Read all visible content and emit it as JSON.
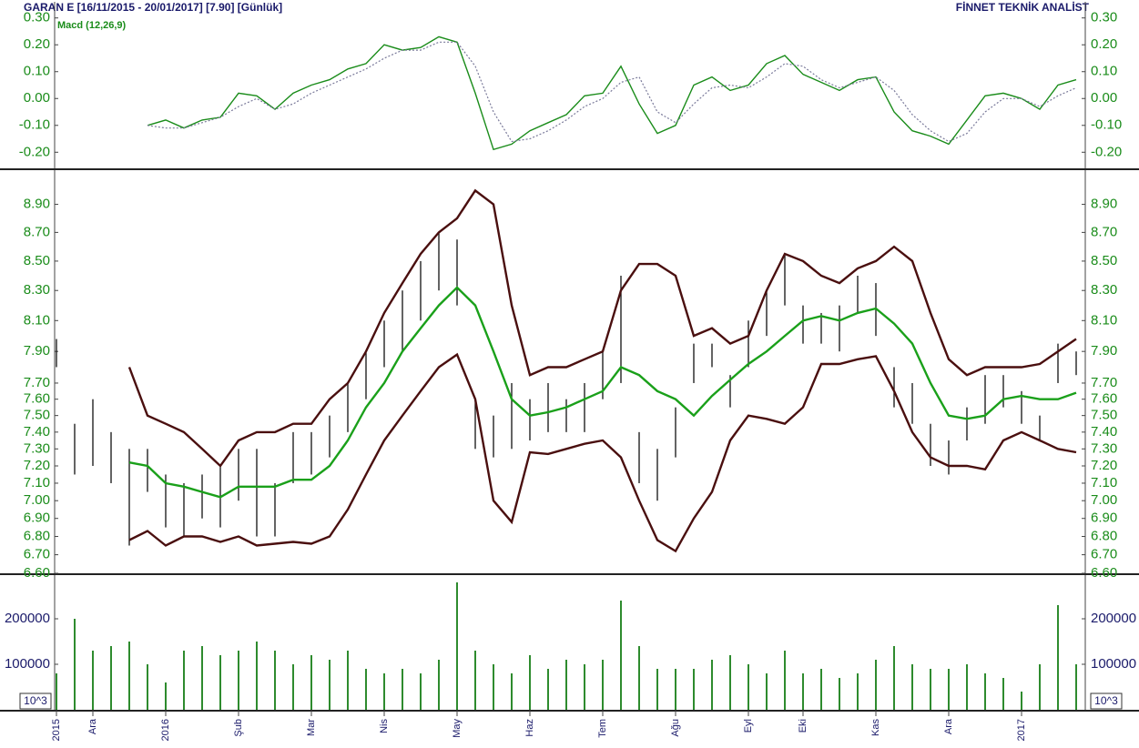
{
  "header": {
    "title": "GARAN E  [16/11/2015 - 20/01/2017]  [7.90]  [Günlük]",
    "source": "FİNNET TEKNİK ANALİST"
  },
  "chart_data": [
    {
      "type": "line",
      "title": "Macd (12,26,9)",
      "title_color": "#1a8c1a",
      "ylim": [
        -0.26,
        0.36
      ],
      "yticks": [
        {
          "value": 0.3,
          "label": "0.30"
        },
        {
          "value": 0.2,
          "label": "0.20"
        },
        {
          "value": 0.1,
          "label": "0.10"
        },
        {
          "value": 0,
          "label": "0.00"
        },
        {
          "value": -0.1,
          "label": "-0.10"
        },
        {
          "value": -0.2,
          "label": "-0.20"
        }
      ],
      "series": [
        {
          "color": "#1a8c1a",
          "style": "solid",
          "values": [
            null,
            null,
            null,
            null,
            null,
            -0.1,
            -0.08,
            -0.11,
            -0.08,
            -0.07,
            0.02,
            0.01,
            -0.04,
            0.02,
            0.05,
            0.07,
            0.11,
            0.13,
            0.2,
            0.18,
            0.19,
            0.23,
            0.21,
            0.02,
            -0.19,
            -0.17,
            -0.12,
            -0.09,
            -0.06,
            0.01,
            0.02,
            0.12,
            -0.02,
            -0.13,
            -0.1,
            0.05,
            0.08,
            0.03,
            0.05,
            0.13,
            0.16,
            0.09,
            0.06,
            0.03,
            0.07,
            0.08,
            -0.05,
            -0.12,
            -0.14,
            -0.17,
            -0.08,
            0.01,
            0.02,
            0,
            -0.04,
            0.05,
            0.07
          ]
        },
        {
          "color": "#7a7a9a",
          "style": "dotted",
          "values": [
            null,
            null,
            null,
            null,
            null,
            -0.1,
            -0.11,
            -0.11,
            -0.09,
            -0.07,
            -0.03,
            0,
            -0.04,
            -0.02,
            0.02,
            0.05,
            0.08,
            0.11,
            0.15,
            0.18,
            0.18,
            0.21,
            0.21,
            0.12,
            -0.05,
            -0.16,
            -0.15,
            -0.12,
            -0.08,
            -0.03,
            0,
            0.06,
            0.08,
            -0.05,
            -0.09,
            -0.02,
            0.04,
            0.05,
            0.04,
            0.08,
            0.13,
            0.12,
            0.07,
            0.04,
            0.06,
            0.08,
            0.03,
            -0.06,
            -0.12,
            -0.16,
            -0.13,
            -0.05,
            0,
            0,
            -0.03,
            0.01,
            0.04
          ]
        }
      ]
    },
    {
      "type": "ohlc",
      "log": true,
      "color": "#111111",
      "ylim": [
        6.6,
        9.15
      ],
      "yticks": [
        {
          "value": 8.9,
          "label": "8.90"
        },
        {
          "value": 8.7,
          "label": "8.70"
        },
        {
          "value": 8.5,
          "label": "8.50"
        },
        {
          "value": 8.3,
          "label": "8.30"
        },
        {
          "value": 8.1,
          "label": "8.10"
        },
        {
          "value": 7.9,
          "label": "7.90"
        },
        {
          "value": 7.7,
          "label": "7.70"
        },
        {
          "value": 7.6,
          "label": "7.60"
        },
        {
          "value": 7.5,
          "label": "7.50"
        },
        {
          "value": 7.4,
          "label": "7.40"
        },
        {
          "value": 7.3,
          "label": "7.30"
        },
        {
          "value": 7.2,
          "label": "7.20"
        },
        {
          "value": 7.1,
          "label": "7.10"
        },
        {
          "value": 7,
          "label": "7.00"
        },
        {
          "value": 6.9,
          "label": "6.90"
        },
        {
          "value": 6.8,
          "label": "6.80"
        },
        {
          "value": 6.7,
          "label": "6.70"
        },
        {
          "value": 6.6,
          "label": "6.60"
        }
      ],
      "high": [
        7.98,
        7.45,
        7.6,
        7.4,
        7.3,
        7.3,
        7.15,
        7.1,
        7.15,
        7.2,
        7.3,
        7.3,
        7.1,
        7.4,
        7.4,
        7.5,
        7.7,
        7.9,
        8.1,
        8.3,
        8.5,
        8.7,
        8.65,
        7.6,
        7.5,
        7.7,
        7.6,
        7.7,
        7.6,
        7.7,
        7.9,
        8.4,
        7.4,
        7.3,
        7.55,
        7.95,
        7.95,
        7.75,
        8.1,
        8.3,
        8.55,
        8.2,
        8.15,
        8.2,
        8.4,
        8.35,
        7.8,
        7.7,
        7.45,
        7.35,
        7.55,
        7.75,
        7.75,
        7.65,
        7.5,
        7.95,
        7.9
      ],
      "low": [
        7.8,
        7.15,
        7.2,
        7.1,
        6.75,
        7.05,
        6.85,
        6.8,
        6.9,
        6.85,
        7.0,
        6.8,
        6.8,
        7.1,
        7.15,
        7.25,
        7.4,
        7.6,
        7.8,
        7.9,
        8.1,
        8.3,
        8.2,
        7.3,
        7.25,
        7.3,
        7.35,
        7.4,
        7.4,
        7.4,
        7.6,
        7.7,
        7.1,
        7.0,
        7.25,
        7.7,
        7.8,
        7.55,
        7.8,
        8.0,
        8.2,
        7.95,
        7.95,
        7.9,
        8.15,
        8.0,
        7.55,
        7.45,
        7.2,
        7.15,
        7.35,
        7.45,
        7.55,
        7.45,
        7.35,
        7.7,
        7.75
      ],
      "series": [
        {
          "color": "#4a0f0f",
          "values": [
            null,
            null,
            null,
            null,
            7.8,
            7.5,
            7.45,
            7.4,
            7.3,
            7.2,
            7.35,
            7.4,
            7.4,
            7.45,
            7.45,
            7.6,
            7.7,
            7.9,
            8.15,
            8.35,
            8.55,
            8.7,
            8.8,
            9.0,
            8.9,
            8.2,
            7.75,
            7.8,
            7.8,
            7.85,
            7.9,
            8.3,
            8.48,
            8.48,
            8.4,
            8.0,
            8.05,
            7.95,
            8.0,
            8.3,
            8.55,
            8.5,
            8.4,
            8.35,
            8.45,
            8.5,
            8.6,
            8.5,
            8.15,
            7.85,
            7.75,
            7.8,
            7.8,
            7.8,
            7.82,
            7.9,
            7.98
          ]
        },
        {
          "color": "#1aa01a",
          "values": [
            null,
            null,
            null,
            null,
            7.22,
            7.2,
            7.1,
            7.08,
            7.05,
            7.02,
            7.08,
            7.08,
            7.08,
            7.12,
            7.12,
            7.2,
            7.35,
            7.55,
            7.7,
            7.9,
            8.05,
            8.2,
            8.32,
            8.2,
            7.9,
            7.6,
            7.5,
            7.52,
            7.55,
            7.6,
            7.65,
            7.8,
            7.75,
            7.65,
            7.6,
            7.5,
            7.62,
            7.72,
            7.82,
            7.9,
            8.0,
            8.1,
            8.13,
            8.1,
            8.15,
            8.18,
            8.08,
            7.95,
            7.7,
            7.5,
            7.48,
            7.5,
            7.6,
            7.62,
            7.6,
            7.6,
            7.64
          ]
        },
        {
          "color": "#4a0f0f",
          "values": [
            null,
            null,
            null,
            null,
            6.78,
            6.83,
            6.75,
            6.8,
            6.8,
            6.77,
            6.8,
            6.75,
            6.76,
            6.77,
            6.76,
            6.8,
            6.95,
            7.15,
            7.35,
            7.5,
            7.65,
            7.8,
            7.88,
            7.6,
            7.0,
            6.88,
            7.28,
            7.27,
            7.3,
            7.33,
            7.35,
            7.25,
            7.0,
            6.78,
            6.72,
            6.9,
            7.05,
            7.35,
            7.5,
            7.48,
            7.45,
            7.55,
            7.82,
            7.82,
            7.85,
            7.87,
            7.65,
            7.4,
            7.25,
            7.2,
            7.2,
            7.18,
            7.35,
            7.4,
            7.35,
            7.3,
            7.28
          ]
        }
      ]
    },
    {
      "type": "bar",
      "color": "#2e8b2e",
      "unit_label": "10^3",
      "ylim": [
        0,
        296000
      ],
      "yticks": [
        200000,
        100000
      ],
      "categories": [
        "2015",
        null,
        "Ara",
        null,
        null,
        null,
        "2016",
        null,
        null,
        null,
        "Şub",
        null,
        null,
        null,
        "Mar",
        null,
        null,
        null,
        "Nis",
        null,
        null,
        null,
        "May",
        null,
        null,
        null,
        "Haz",
        null,
        null,
        null,
        "Tem",
        null,
        null,
        null,
        "Ağu",
        null,
        null,
        null,
        "Eyl",
        null,
        null,
        "Eki",
        null,
        null,
        null,
        "Kas",
        null,
        null,
        null,
        "Ara",
        null,
        null,
        null,
        "2017",
        null,
        null,
        null
      ],
      "values": [
        80000,
        200000,
        130000,
        140000,
        150000,
        100000,
        60000,
        130000,
        140000,
        120000,
        130000,
        150000,
        130000,
        100000,
        120000,
        110000,
        130000,
        90000,
        80000,
        90000,
        80000,
        110000,
        280000,
        130000,
        100000,
        80000,
        120000,
        90000,
        110000,
        100000,
        110000,
        240000,
        140000,
        90000,
        90000,
        90000,
        110000,
        120000,
        100000,
        80000,
        130000,
        80000,
        90000,
        70000,
        80000,
        110000,
        140000,
        100000,
        90000,
        90000,
        100000,
        80000,
        70000,
        40000,
        100000,
        230000,
        100000
      ]
    }
  ]
}
